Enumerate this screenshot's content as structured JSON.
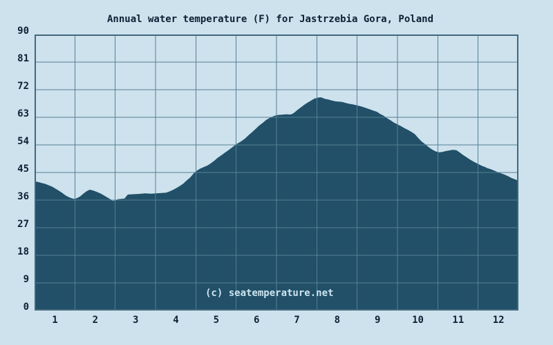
{
  "page": {
    "watermark": "(c) seatemperature.net"
  },
  "colors": {
    "background": "#cde2ed",
    "area_fill": "#215068",
    "gridline": "#567f94",
    "plot_border": "#42677d",
    "text": "#0c2235",
    "watermark": "#cde4ef"
  },
  "chart_data": {
    "type": "area",
    "title": "Annual water temperature (F) for Jastrzebia Gora, Poland",
    "x_ticks": [
      "1",
      "2",
      "3",
      "4",
      "5",
      "6",
      "7",
      "8",
      "9",
      "10",
      "11",
      "12"
    ],
    "y_ticks": [
      90,
      81,
      72,
      63,
      54,
      45,
      36,
      27,
      18,
      9,
      0
    ],
    "xlim": [
      0,
      12
    ],
    "ylim": [
      0,
      90
    ],
    "grid": true,
    "legend": false,
    "units": "F",
    "series": [
      {
        "name": "water temperature (F)",
        "x": [
          0.0,
          0.09,
          0.17,
          0.26,
          0.34,
          0.43,
          0.51,
          0.6,
          0.69,
          0.77,
          0.86,
          0.94,
          1.0,
          1.06,
          1.13,
          1.2,
          1.29,
          1.37,
          1.46,
          1.54,
          1.63,
          1.71,
          1.8,
          1.89,
          1.94,
          2.0,
          2.06,
          2.14,
          2.23,
          2.31,
          2.4,
          2.57,
          2.74,
          2.9,
          3.0,
          3.14,
          3.26,
          3.34,
          3.43,
          3.51,
          3.6,
          3.69,
          3.77,
          3.86,
          3.94,
          4.0,
          4.11,
          4.2,
          4.29,
          4.37,
          4.46,
          4.54,
          4.63,
          4.71,
          4.8,
          4.89,
          5.0,
          5.14,
          5.23,
          5.31,
          5.4,
          5.49,
          5.57,
          5.66,
          5.74,
          5.83,
          5.91,
          6.0,
          6.09,
          6.17,
          6.26,
          6.31,
          6.37,
          6.43,
          6.51,
          6.6,
          6.69,
          6.77,
          6.86,
          6.94,
          7.0,
          7.06,
          7.11,
          7.2,
          7.29,
          7.37,
          7.46,
          7.54,
          7.63,
          7.71,
          7.8,
          7.89,
          8.0,
          8.11,
          8.23,
          8.31,
          8.4,
          8.49,
          8.57,
          8.66,
          8.74,
          8.83,
          8.91,
          9.0,
          9.09,
          9.17,
          9.26,
          9.34,
          9.43,
          9.51,
          9.6,
          9.69,
          9.77,
          9.86,
          9.94,
          10.03,
          10.11,
          10.2,
          10.29,
          10.37,
          10.46,
          10.54,
          10.63,
          10.71,
          10.8,
          10.89,
          11.0,
          11.09,
          11.17,
          11.23,
          11.31,
          11.4,
          11.49,
          11.57,
          11.66,
          11.74,
          11.83,
          11.91,
          12.0
        ],
        "y": [
          42.1,
          41.9,
          41.6,
          41.3,
          40.9,
          40.4,
          39.8,
          39.1,
          38.3,
          37.5,
          36.9,
          36.5,
          36.4,
          36.7,
          37.2,
          38.0,
          38.9,
          39.4,
          39.1,
          38.7,
          38.2,
          37.6,
          36.9,
          36.2,
          35.7,
          35.9,
          36.3,
          36.4,
          36.5,
          37.8,
          37.9,
          38.0,
          38.2,
          38.1,
          38.2,
          38.3,
          38.4,
          38.8,
          39.3,
          39.9,
          40.6,
          41.4,
          42.4,
          43.4,
          44.6,
          45.4,
          46.3,
          46.8,
          47.3,
          48.0,
          48.9,
          49.8,
          50.6,
          51.4,
          52.2,
          53.1,
          54.2,
          55.3,
          56.2,
          57.2,
          58.2,
          59.3,
          60.3,
          61.2,
          62.1,
          62.8,
          63.3,
          63.7,
          63.8,
          63.9,
          64.0,
          63.9,
          64.0,
          64.4,
          65.3,
          66.2,
          67.1,
          67.8,
          68.5,
          69.1,
          69.3,
          69.5,
          69.5,
          69.0,
          68.8,
          68.5,
          68.2,
          68.1,
          68.0,
          67.7,
          67.4,
          67.2,
          66.9,
          66.5,
          66.0,
          65.6,
          65.2,
          64.8,
          64.1,
          63.5,
          62.7,
          62.0,
          61.3,
          60.7,
          60.1,
          59.5,
          58.9,
          58.3,
          57.5,
          56.3,
          55.1,
          54.2,
          53.3,
          52.5,
          51.9,
          51.6,
          51.7,
          52.0,
          52.2,
          52.4,
          52.3,
          51.6,
          50.7,
          50.0,
          49.2,
          48.5,
          47.8,
          47.2,
          46.8,
          46.4,
          46.1,
          45.6,
          45.1,
          44.7,
          44.3,
          43.8,
          43.2,
          42.8,
          42.3
        ]
      }
    ]
  }
}
